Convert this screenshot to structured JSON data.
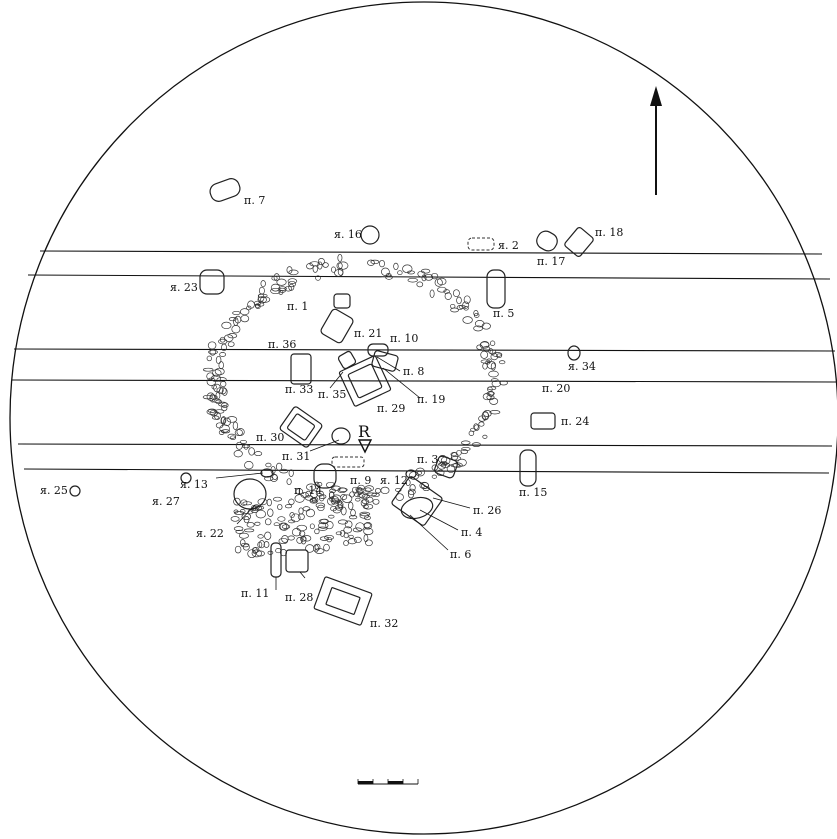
{
  "plan": {
    "north_arrow": "north-arrow",
    "section_marker": "R",
    "scale_bar": "scale-bar",
    "features": [
      {
        "id": "p7",
        "label": "п. 7"
      },
      {
        "id": "ya16",
        "label": "я. 16"
      },
      {
        "id": "ya2",
        "label": "я. 2"
      },
      {
        "id": "p17",
        "label": "п. 17"
      },
      {
        "id": "p18",
        "label": "п. 18"
      },
      {
        "id": "ya23",
        "label": "я. 23"
      },
      {
        "id": "p1",
        "label": "п. 1"
      },
      {
        "id": "p5",
        "label": "п. 5"
      },
      {
        "id": "p21",
        "label": "п. 21"
      },
      {
        "id": "p10",
        "label": "п. 10"
      },
      {
        "id": "p36",
        "label": "п. 36"
      },
      {
        "id": "ya34",
        "label": "я. 34"
      },
      {
        "id": "p8",
        "label": "п. 8"
      },
      {
        "id": "p33",
        "label": "п. 33"
      },
      {
        "id": "p35",
        "label": "п. 35"
      },
      {
        "id": "p20",
        "label": "п. 20"
      },
      {
        "id": "p19",
        "label": "п. 19"
      },
      {
        "id": "p29",
        "label": "п. 29"
      },
      {
        "id": "p24",
        "label": "п. 24"
      },
      {
        "id": "p30",
        "label": "п. 30"
      },
      {
        "id": "p31",
        "label": "п. 31"
      },
      {
        "id": "p3",
        "label": "п. 3"
      },
      {
        "id": "ya25",
        "label": "я. 25"
      },
      {
        "id": "ya13",
        "label": "я. 13"
      },
      {
        "id": "p14",
        "label": "п. 14"
      },
      {
        "id": "p9",
        "label": "п. 9"
      },
      {
        "id": "ya12",
        "label": "я. 12"
      },
      {
        "id": "p15",
        "label": "п. 15"
      },
      {
        "id": "ya27",
        "label": "я. 27"
      },
      {
        "id": "p26",
        "label": "п. 26"
      },
      {
        "id": "ya22",
        "label": "я. 22"
      },
      {
        "id": "p4",
        "label": "п. 4"
      },
      {
        "id": "p6",
        "label": "п. 6"
      },
      {
        "id": "p11",
        "label": "п. 11"
      },
      {
        "id": "p28",
        "label": "п. 28"
      },
      {
        "id": "p32",
        "label": "п. 32"
      }
    ]
  }
}
